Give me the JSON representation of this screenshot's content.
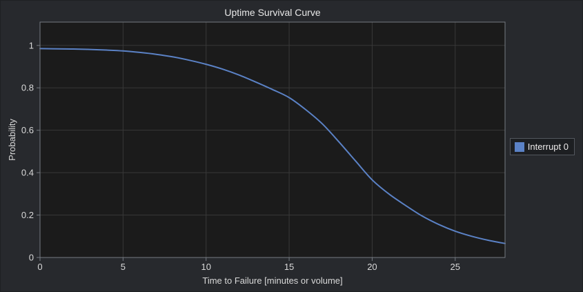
{
  "theme": {
    "page_bg": "#27292d",
    "plot_bg": "#1b1b1b",
    "grid_color": "#383838",
    "axis_color": "#767b82",
    "tick_text_color": "#d9d9d9",
    "title_color": "#e9e9e9",
    "legend_bg": "#1d1f22",
    "legend_border": "#53575e",
    "series_blue": "#5b82c6"
  },
  "chart_data": {
    "type": "line",
    "title": "Uptime Survival Curve",
    "xlabel": "Time to Failure [minutes or volume]",
    "ylabel": "Probability",
    "xlim": [
      0,
      28
    ],
    "ylim": [
      0,
      1.11
    ],
    "x_ticks": [
      0,
      5,
      10,
      15,
      20,
      25
    ],
    "x_tick_labels": [
      "0",
      "5",
      "10",
      "15",
      "20",
      "25"
    ],
    "y_ticks": [
      0,
      0.2,
      0.4,
      0.6,
      0.8,
      1
    ],
    "y_tick_labels": [
      "0",
      "0.2",
      "0.4",
      "0.6",
      "0.8",
      "1"
    ],
    "grid": true,
    "legend": {
      "position": "right-outside",
      "entries": [
        {
          "label": "Interrupt 0",
          "color": "#5b82c6"
        }
      ]
    },
    "series": [
      {
        "name": "Interrupt 0",
        "color": "#5b82c6",
        "line_width": 2,
        "x": [
          0,
          1,
          2,
          3,
          4,
          5,
          6,
          7,
          8,
          9,
          10,
          11,
          12,
          13,
          14,
          15,
          16,
          17,
          18,
          19,
          20,
          21,
          22,
          23,
          24,
          25,
          26,
          27,
          28
        ],
        "y": [
          0.985,
          0.984,
          0.983,
          0.981,
          0.978,
          0.974,
          0.967,
          0.958,
          0.946,
          0.93,
          0.911,
          0.888,
          0.86,
          0.827,
          0.792,
          0.754,
          0.697,
          0.63,
          0.545,
          0.455,
          0.366,
          0.3,
          0.246,
          0.196,
          0.156,
          0.124,
          0.1,
          0.081,
          0.066
        ]
      }
    ]
  }
}
